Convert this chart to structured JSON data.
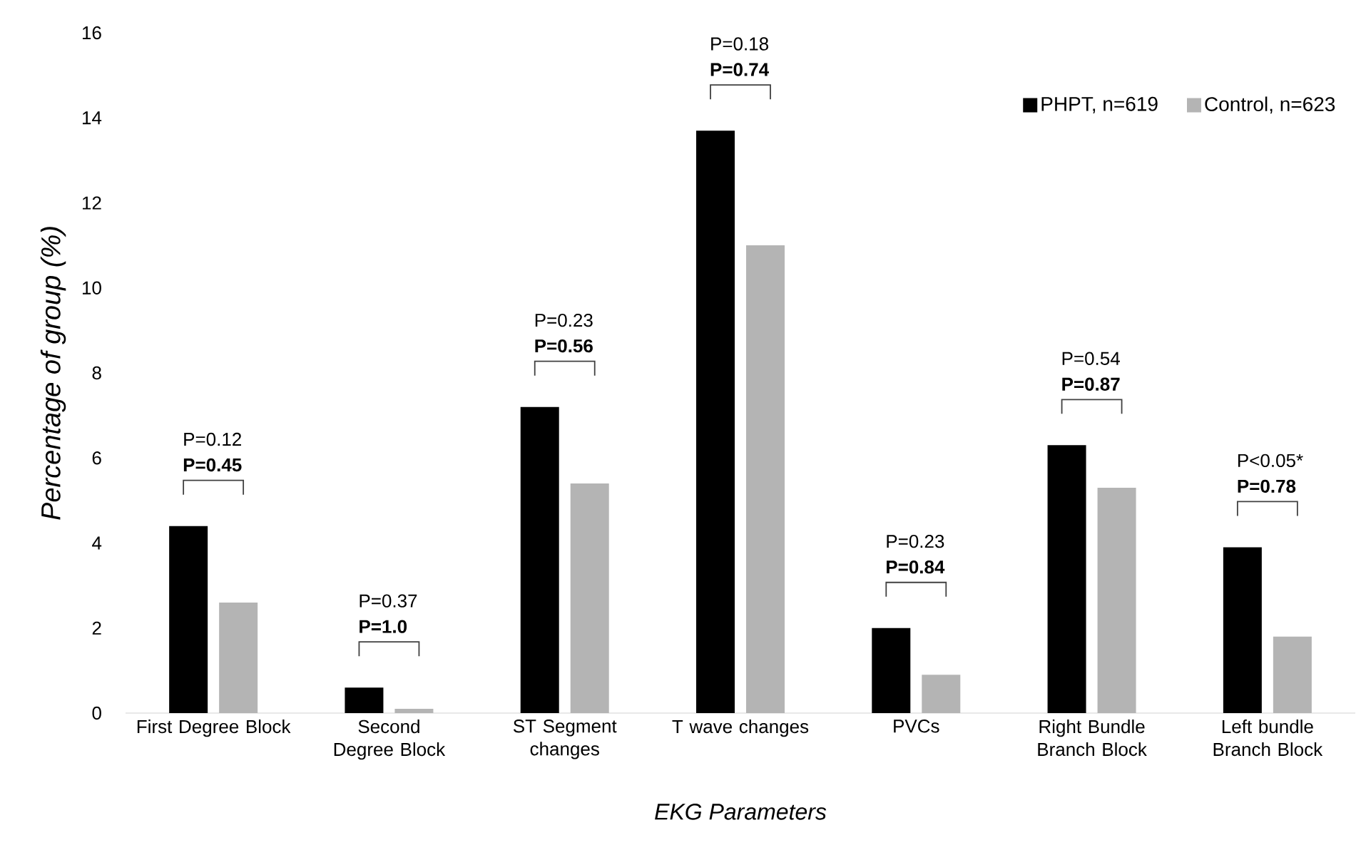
{
  "chart_data": {
    "type": "bar",
    "xlabel": "EKG Parameters",
    "ylabel": "Percentage of group (%)",
    "categories": [
      "First Degree Block",
      "Second Degree Block",
      "ST Segment changes",
      "T wave changes",
      "PVCs",
      "Right Bundle Branch Block",
      "Left bundle Branch Block"
    ],
    "series": [
      {
        "name": "PHPT, n=619",
        "color": "#000000",
        "values": [
          4.4,
          0.6,
          7.2,
          13.7,
          2.0,
          6.3,
          3.9
        ]
      },
      {
        "name": "Control, n=623",
        "color": "#b4b4b4",
        "values": [
          2.6,
          0.1,
          5.4,
          11.0,
          0.9,
          5.3,
          1.8
        ]
      }
    ],
    "ylim": [
      0,
      16
    ],
    "yticks": [
      0,
      2,
      4,
      6,
      8,
      10,
      12,
      14,
      16
    ],
    "legend": "top right",
    "annotations": [
      "P=0.12 **P=0.45**",
      "P=0.37 **P=1.0**",
      "P=0.23 **P=0.56**",
      "P=0.18 **P=0.74**",
      "P=0.23 **P=0.84**",
      "P=0.54 **P=0.87**",
      "P<0.05* **P=0.78**"
    ]
  }
}
